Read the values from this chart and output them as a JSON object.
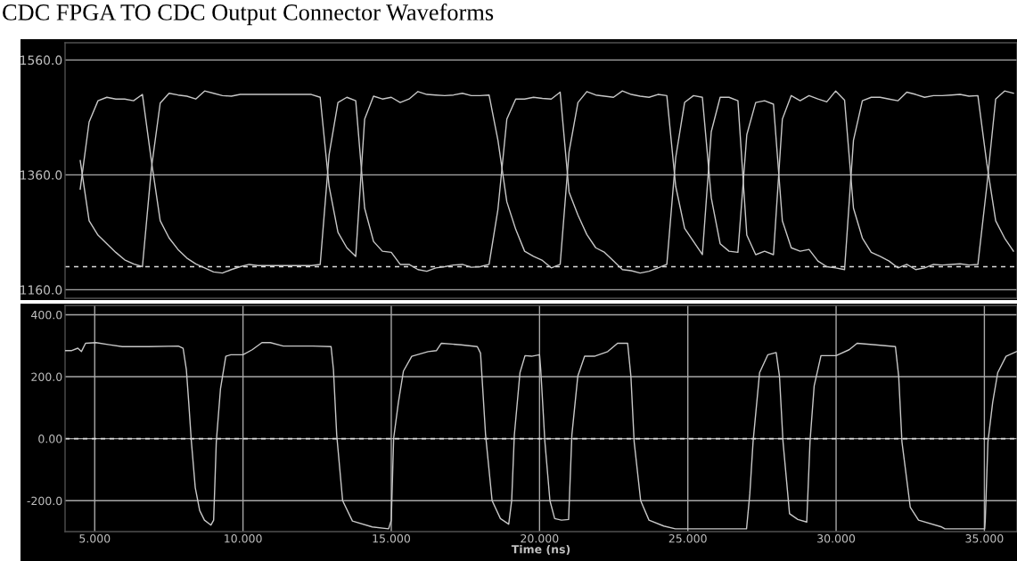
{
  "chart_data": [
    {
      "type": "line",
      "title": "CDC FPGA TO CDC Output Connector Waveforms",
      "categories": [
        null,
        null,
        null,
        null,
        null,
        null,
        null,
        null,
        null,
        null,
        null,
        null,
        null,
        null,
        null,
        null,
        null,
        null,
        null,
        null,
        null,
        null,
        null,
        null,
        null,
        null,
        null,
        null,
        null,
        null,
        null,
        null,
        null,
        null,
        null,
        null,
        null,
        null,
        null,
        null,
        null,
        null,
        null,
        null,
        null,
        null,
        null,
        null,
        null,
        null,
        null,
        null,
        null,
        null,
        null,
        null,
        null,
        null,
        null,
        null,
        null,
        null,
        null,
        null,
        null,
        null,
        null,
        null,
        null,
        null,
        null,
        null,
        null,
        null,
        null,
        null,
        null,
        null,
        null,
        null,
        null,
        null,
        null,
        null,
        null,
        null,
        null,
        null,
        null,
        null,
        null,
        null,
        null,
        null,
        null,
        null,
        null,
        null,
        null,
        null,
        null,
        null,
        null,
        null,
        null,
        null
      ],
      "series": [
        {
          "color": "#c8c8c8",
          "values": [
            1385,
            1280,
            1255,
            1240,
            1225,
            1212,
            1205,
            1200,
            1370,
            1485,
            1502,
            1499,
            1497,
            1492,
            1506,
            1502,
            1498,
            1497,
            1500,
            1500,
            1500,
            1500,
            1500,
            1500,
            1500,
            1500,
            1500,
            1495,
            1340,
            1260,
            1233,
            1218,
            1457,
            1497,
            1492,
            1495,
            1486,
            1492,
            1505,
            1500,
            1499,
            1498,
            1499,
            1502,
            1498,
            1498,
            1499,
            1420,
            1313,
            1265,
            1227,
            1218,
            1211,
            1198,
            1204,
            1400,
            1486,
            1505,
            1499,
            1497,
            1495,
            1506,
            1500,
            1497,
            1495,
            1500,
            1498,
            1340,
            1267,
            1244,
            1221,
            1435,
            1495,
            1495,
            1489,
            1255,
            1221,
            1227,
            1221,
            1457,
            1498,
            1489,
            1498,
            1492,
            1487,
            1506,
            1490,
            1302,
            1250,
            1225,
            1218,
            1210,
            1198,
            1204,
            1195,
            1198,
            1204,
            1203,
            1204,
            1205,
            1203,
            1204,
            1340,
            1492,
            1506,
            1502
          ]
        },
        {
          "color": "#c8c8c8",
          "values": [
            1335,
            1452,
            1489,
            1495,
            1492,
            1492,
            1489,
            1500,
            1385,
            1280,
            1250,
            1230,
            1215,
            1205,
            1198,
            1191,
            1189,
            1195,
            1200,
            1204,
            1202,
            1202,
            1202,
            1202,
            1202,
            1202,
            1202,
            1204,
            1395,
            1486,
            1495,
            1489,
            1302,
            1244,
            1227,
            1225,
            1204,
            1204,
            1195,
            1192,
            1198,
            1200,
            1203,
            1204,
            1199,
            1200,
            1204,
            1300,
            1457,
            1492,
            1492,
            1495,
            1493,
            1492,
            1504,
            1330,
            1290,
            1256,
            1233,
            1225,
            1210,
            1195,
            1193,
            1189,
            1192,
            1198,
            1204,
            1390,
            1486,
            1498,
            1495,
            1320,
            1240,
            1227,
            1225,
            1430,
            1486,
            1489,
            1483,
            1280,
            1233,
            1227,
            1230,
            1210,
            1200,
            1198,
            1195,
            1420,
            1489,
            1495,
            1495,
            1492,
            1489,
            1504,
            1500,
            1495,
            1498,
            1498,
            1499,
            1500,
            1497,
            1498,
            1380,
            1280,
            1250,
            1227
          ]
        }
      ],
      "ylim": [
        1145,
        1590
      ],
      "yticks": [
        {
          "value": 1160,
          "label": "1160.0"
        },
        {
          "value": 1360,
          "label": "1360.0"
        },
        {
          "value": 1560,
          "label": "1560.0"
        }
      ],
      "grid": "y",
      "ref_lines": [
        {
          "axis": "y",
          "value": 1200,
          "line_style": "dashed",
          "color": "#dcdcdc"
        }
      ]
    },
    {
      "type": "line",
      "xlabel": "Time (ns)",
      "x": [
        4.0,
        4.21,
        4.43,
        4.55,
        4.69,
        5.04,
        5.49,
        5.93,
        6.82,
        7.82,
        7.98,
        8.09,
        8.17,
        8.26,
        8.39,
        8.54,
        8.7,
        8.92,
        9.01,
        9.1,
        9.24,
        9.42,
        9.59,
        10.0,
        10.31,
        10.64,
        10.92,
        11.36,
        12.36,
        12.97,
        13.05,
        13.16,
        13.36,
        13.69,
        14.36,
        14.91,
        15.0,
        15.08,
        15.24,
        15.41,
        15.69,
        16.24,
        16.52,
        16.69,
        17.35,
        17.9,
        18.01,
        18.18,
        18.4,
        18.68,
        18.96,
        19.06,
        19.15,
        19.34,
        19.51,
        19.73,
        20.0,
        20.04,
        20.18,
        20.35,
        20.51,
        20.74,
        20.98,
        21.09,
        21.29,
        21.52,
        21.85,
        22.3,
        22.63,
        22.97,
        23.08,
        23.19,
        23.41,
        23.69,
        24.19,
        24.58,
        26.98,
        27.09,
        27.2,
        27.42,
        27.7,
        27.98,
        28.09,
        28.21,
        28.43,
        28.71,
        29.01,
        29.12,
        29.26,
        29.49,
        30.0,
        30.44,
        30.71,
        31.33,
        32.0,
        32.11,
        32.22,
        32.5,
        32.78,
        33.56,
        33.67,
        35.01,
        35.03,
        35.12,
        35.28,
        35.45,
        35.73,
        36.08
      ],
      "series": [
        {
          "color": "#c8c8c8",
          "values": [
            284,
            284,
            292,
            281,
            308,
            310,
            303,
            297,
            297,
            299,
            292,
            223,
            117,
            -10,
            -158,
            -232,
            -263,
            -279,
            -263,
            -10,
            160,
            266,
            271,
            271,
            287,
            310,
            310,
            299,
            299,
            297,
            223,
            12,
            -200,
            -266,
            -285,
            -291,
            -263,
            1,
            117,
            218,
            266,
            281,
            284,
            308,
            303,
            297,
            276,
            12,
            -200,
            -258,
            -276,
            -200,
            12,
            213,
            268,
            266,
            271,
            223,
            -10,
            -200,
            -258,
            -263,
            -261,
            12,
            202,
            266,
            266,
            281,
            308,
            308,
            202,
            -10,
            -200,
            -263,
            -282,
            -291,
            -291,
            -179,
            -10,
            213,
            271,
            278,
            202,
            -10,
            -242,
            -261,
            -269,
            -10,
            170,
            268,
            268,
            287,
            308,
            303,
            297,
            202,
            -10,
            -221,
            -263,
            -285,
            -291,
            -291,
            -263,
            -10,
            117,
            213,
            266,
            281
          ]
        }
      ],
      "xlim": [
        4.0,
        36.1
      ],
      "xticks": [
        {
          "value": 5,
          "label": "5.000"
        },
        {
          "value": 10,
          "label": "10.000"
        },
        {
          "value": 15,
          "label": "15.000"
        },
        {
          "value": 20,
          "label": "20.000"
        },
        {
          "value": 25,
          "label": "25.000"
        },
        {
          "value": 30,
          "label": "30.000"
        },
        {
          "value": 35,
          "label": "35.000"
        }
      ],
      "ylim": [
        -300,
        430
      ],
      "yticks": [
        {
          "value": -200,
          "label": "-200.0"
        },
        {
          "value": 0,
          "label": "0.00"
        },
        {
          "value": 200,
          "label": "200.0"
        },
        {
          "value": 400,
          "label": "400.0"
        }
      ],
      "grid": true,
      "ref_lines": [
        {
          "axis": "y",
          "value": 0,
          "line_style": "dashed",
          "color": "#dcdcdc"
        }
      ]
    }
  ]
}
